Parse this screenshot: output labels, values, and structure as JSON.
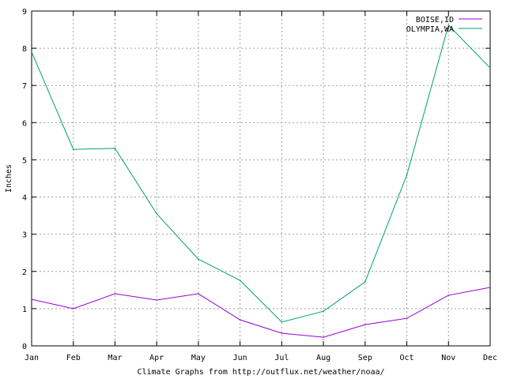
{
  "chart_data": {
    "type": "line",
    "title": "",
    "xlabel": "Climate Graphs from http://outflux.net/weather/noaa/",
    "ylabel": "Inches",
    "categories": [
      "Jan",
      "Feb",
      "Mar",
      "Apr",
      "May",
      "Jun",
      "Jul",
      "Aug",
      "Sep",
      "Oct",
      "Nov",
      "Dec"
    ],
    "ylim": [
      0,
      9
    ],
    "yticks": [
      "0",
      "1",
      "2",
      "3",
      "4",
      "5",
      "6",
      "7",
      "8",
      "9"
    ],
    "grid": true,
    "legend_position": "top-right",
    "series": [
      {
        "name": "BOISE,ID",
        "color": "#9400d3",
        "values": [
          1.25,
          1.0,
          1.4,
          1.23,
          1.4,
          0.7,
          0.34,
          0.23,
          0.57,
          0.74,
          1.36,
          1.57
        ]
      },
      {
        "name": "OLYMPIA,WA",
        "color": "#009e73",
        "values": [
          7.9,
          5.28,
          5.31,
          3.55,
          2.33,
          1.76,
          0.64,
          0.93,
          1.72,
          4.59,
          8.62,
          7.47
        ]
      }
    ]
  }
}
